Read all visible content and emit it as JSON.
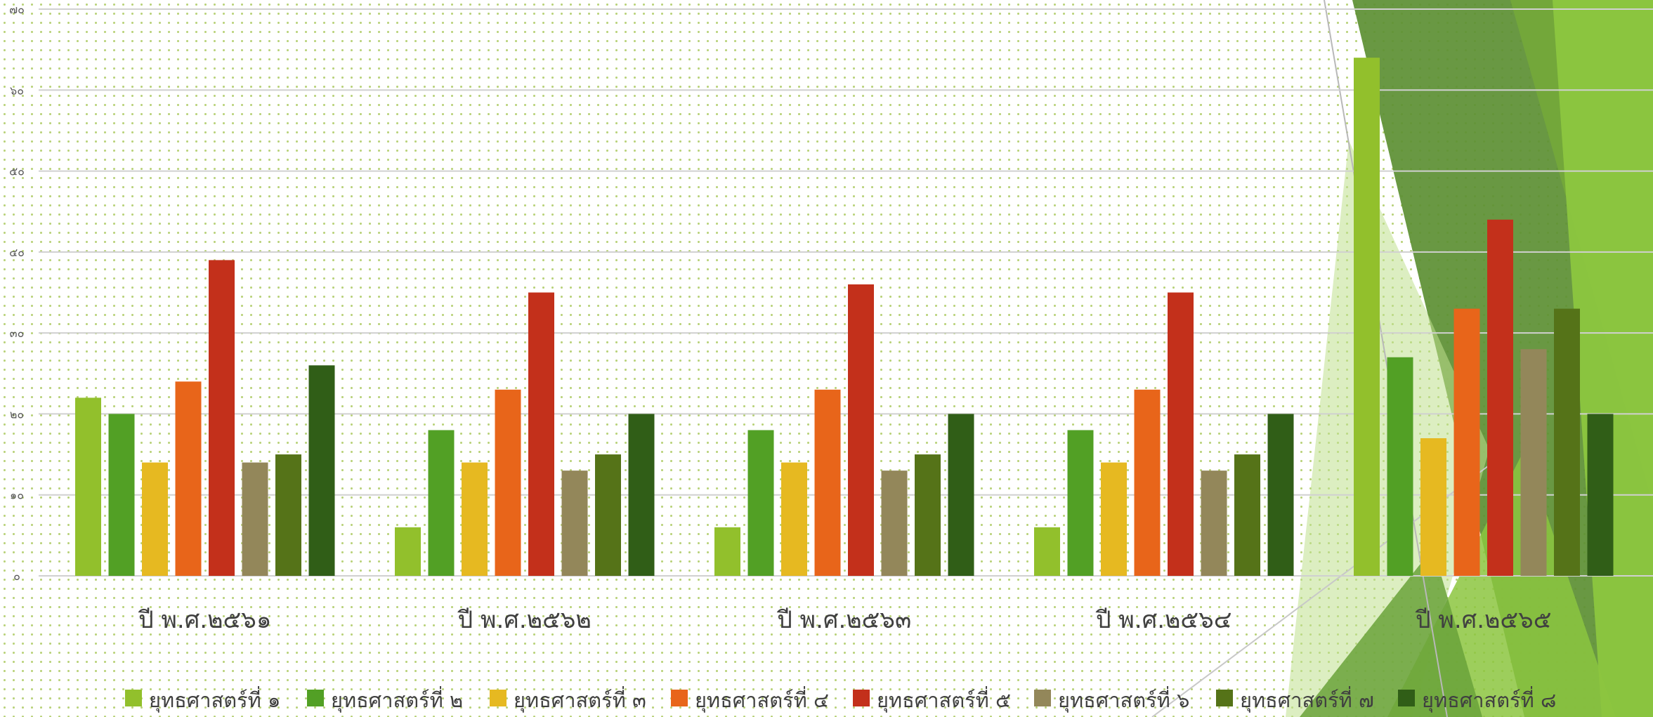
{
  "chart_data": {
    "type": "bar",
    "title": "",
    "xlabel": "",
    "ylabel": "",
    "ylim": [
      0,
      70
    ],
    "yticks": [
      0,
      10,
      20,
      30,
      40,
      50,
      60,
      70
    ],
    "ytick_labels": [
      "๐",
      "๑๐",
      "๒๐",
      "๓๐",
      "๔๐",
      "๕๐",
      "๖๐",
      "๗๐"
    ],
    "grid": true,
    "legend_position": "bottom",
    "categories": [
      "ปี พ.ศ.๒๕๖๑",
      "ปี พ.ศ.๒๕๖๒",
      "ปี พ.ศ.๒๕๖๓",
      "ปี พ.ศ.๒๕๖๔",
      "ปี พ.ศ.๒๕๖๕"
    ],
    "series": [
      {
        "name": "ยุทธศาสตร์ที่ ๑",
        "color": "#92c02c",
        "values": [
          22,
          6,
          6,
          6,
          64
        ]
      },
      {
        "name": "ยุทธศาสตร์ที่ ๒",
        "color": "#52a025",
        "values": [
          20,
          18,
          18,
          18,
          27
        ]
      },
      {
        "name": "ยุทธศาสตร์ที่ ๓",
        "color": "#e6b921",
        "values": [
          14,
          14,
          14,
          14,
          17
        ]
      },
      {
        "name": "ยุทธศาสตร์ที่ ๔",
        "color": "#e8651a",
        "values": [
          24,
          23,
          23,
          23,
          33
        ]
      },
      {
        "name": "ยุทธศาสตร์ที่ ๕",
        "color": "#c3301b",
        "values": [
          39,
          35,
          36,
          35,
          44
        ]
      },
      {
        "name": "ยุทธศาสตร์ที่ ๖",
        "color": "#93875a",
        "values": [
          14,
          13,
          13,
          13,
          28
        ]
      },
      {
        "name": "ยุทธศาสตร์ที่ ๗",
        "color": "#557318",
        "values": [
          15,
          15,
          15,
          15,
          33
        ]
      },
      {
        "name": "ยุทธศาสตร์ที่ ๘",
        "color": "#305e17",
        "values": [
          26,
          20,
          20,
          20,
          20
        ]
      }
    ]
  }
}
